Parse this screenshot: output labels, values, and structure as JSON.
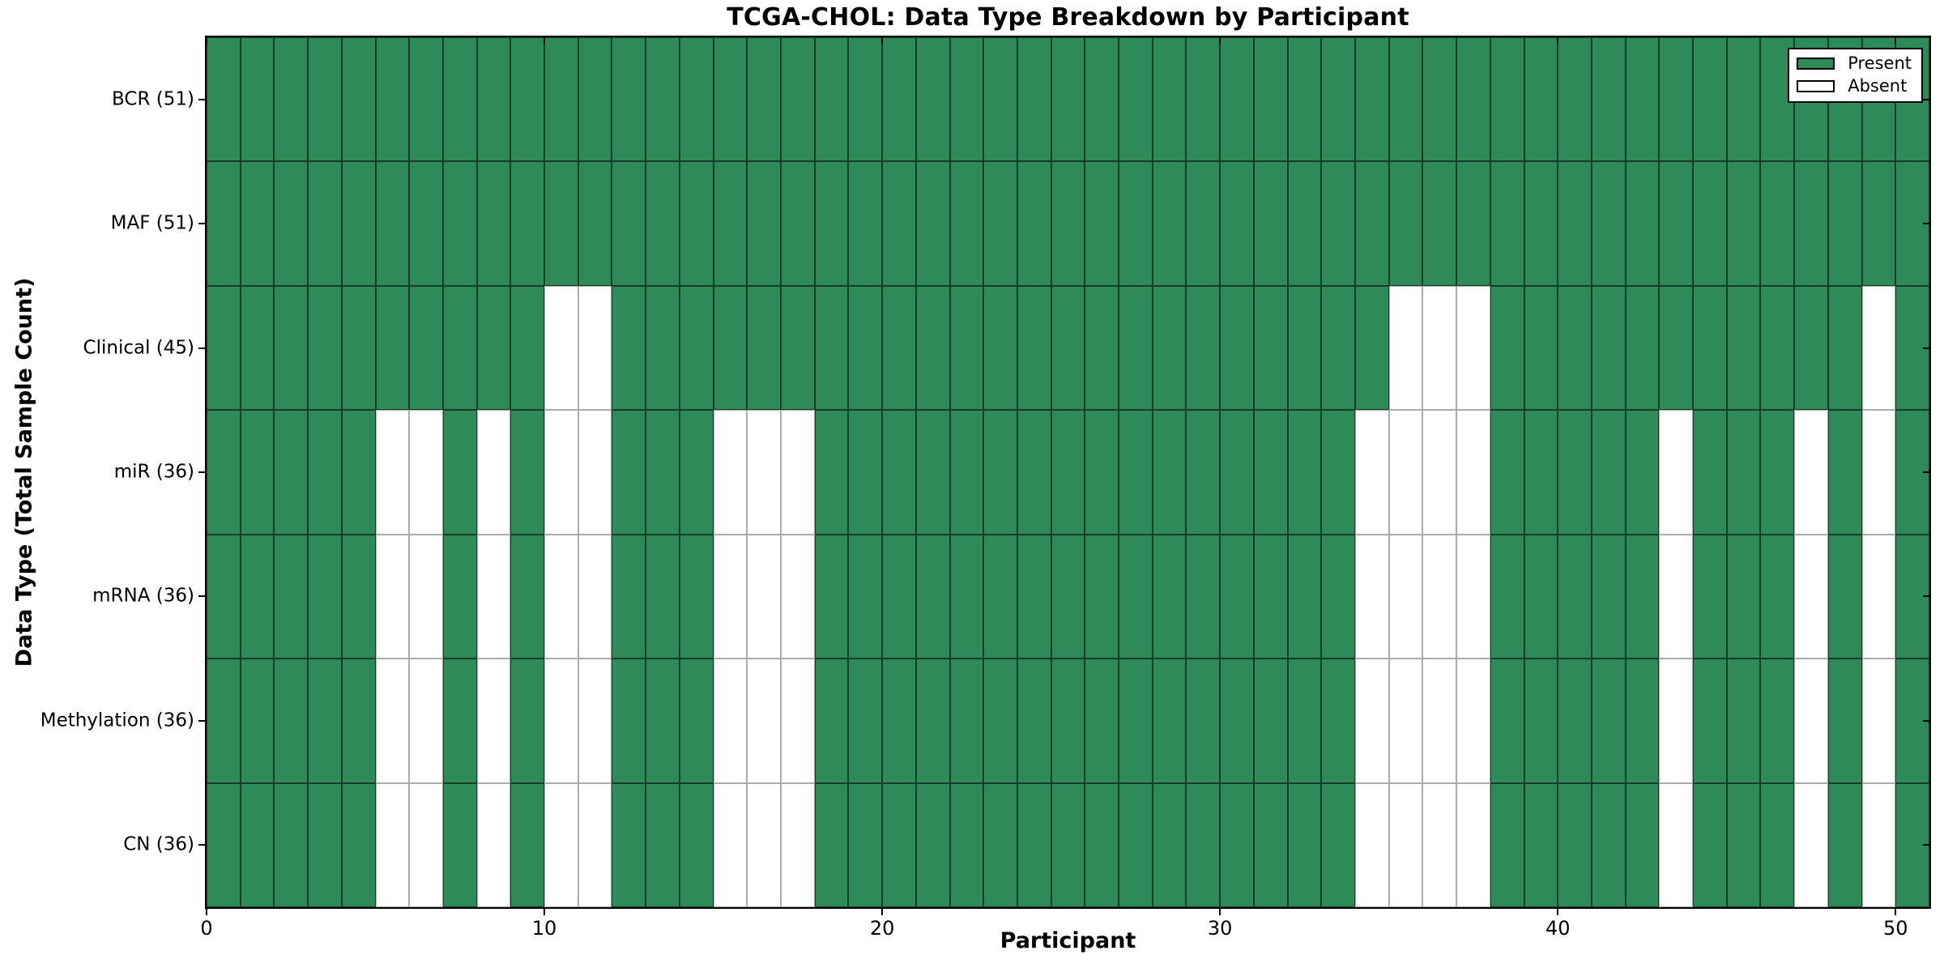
{
  "chart_data": {
    "type": "heatmap",
    "title": "TCGA-CHOL: Data Type Breakdown by Participant",
    "xlabel": "Participant",
    "ylabel": "Data Type (Total Sample Count)",
    "n_participants": 51,
    "x_range": [
      0,
      51
    ],
    "x_ticks": [
      0,
      10,
      20,
      30,
      40,
      50
    ],
    "legend": {
      "position": "upper right",
      "entries": [
        {
          "label": "Present",
          "color": "#2e8b57"
        },
        {
          "label": "Absent",
          "color": "#ffffff"
        }
      ]
    },
    "rows": [
      {
        "name": "BCR",
        "label": "BCR (51)",
        "total": 51,
        "absent_participants": []
      },
      {
        "name": "MAF",
        "label": "MAF (51)",
        "total": 51,
        "absent_participants": []
      },
      {
        "name": "Clinical",
        "label": "Clinical (45)",
        "total": 45,
        "absent_participants": [
          10,
          11,
          35,
          36,
          37,
          49
        ]
      },
      {
        "name": "miR",
        "label": "miR (36)",
        "total": 36,
        "absent_participants": [
          5,
          6,
          8,
          10,
          11,
          15,
          16,
          17,
          34,
          35,
          36,
          37,
          43,
          47,
          49
        ]
      },
      {
        "name": "mRNA",
        "label": "mRNA (36)",
        "total": 36,
        "absent_participants": [
          5,
          6,
          8,
          10,
          11,
          15,
          16,
          17,
          34,
          35,
          36,
          37,
          43,
          47,
          49
        ]
      },
      {
        "name": "Methylation",
        "label": "Methylation (36)",
        "total": 36,
        "absent_participants": [
          5,
          6,
          8,
          10,
          11,
          15,
          16,
          17,
          34,
          35,
          36,
          37,
          43,
          47,
          49
        ]
      },
      {
        "name": "CN",
        "label": "CN (36)",
        "total": 36,
        "absent_participants": [
          5,
          6,
          8,
          10,
          11,
          15,
          16,
          17,
          34,
          35,
          36,
          37,
          43,
          47,
          49
        ]
      }
    ],
    "colors": {
      "present": "#2e8b57",
      "absent": "#ffffff",
      "cell_edge_on_present": "rgba(0,0,0,0.55)",
      "cell_edge_on_absent": "#ababab",
      "axis": "#000000"
    }
  }
}
